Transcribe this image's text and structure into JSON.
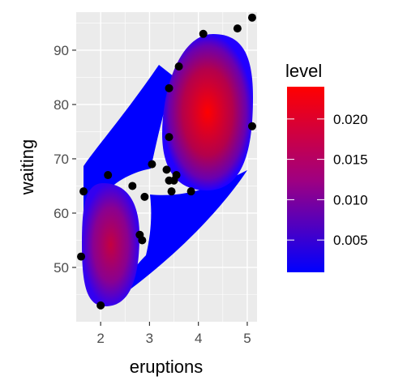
{
  "chart_data": {
    "type": "density2d_filled_scatter",
    "xlabel": "eruptions",
    "ylabel": "waiting",
    "xlim": [
      1.5,
      5.2
    ],
    "ylim": [
      40,
      97
    ],
    "xticks": [
      2,
      3,
      4,
      5
    ],
    "yticks": [
      50,
      60,
      70,
      80,
      90
    ],
    "tick_labels_x": [
      "2",
      "3",
      "4",
      "5"
    ],
    "tick_labels_y": [
      "50",
      "60",
      "70",
      "80",
      "90"
    ],
    "legend": {
      "title": "level",
      "placement": "right",
      "range": [
        0.001,
        0.024
      ],
      "ticks": [
        0.005,
        0.01,
        0.015,
        0.02
      ],
      "tick_labels": [
        "0.005",
        "0.010",
        "0.015",
        "0.020"
      ],
      "color_low": "#0000ff",
      "color_high": "#ff0000"
    },
    "density_regions": [
      {
        "center": [
          4.32,
          80.5
        ],
        "peak_level": 0.024
      },
      {
        "center": [
          2.05,
          54.0
        ],
        "peak_level": 0.016
      }
    ],
    "points": [
      [
        5.1,
        96
      ],
      [
        4.8,
        94
      ],
      [
        4.1,
        93
      ],
      [
        3.6,
        87
      ],
      [
        3.4,
        83
      ],
      [
        5.1,
        76
      ],
      [
        3.4,
        74
      ],
      [
        3.05,
        69
      ],
      [
        3.35,
        68
      ],
      [
        3.55,
        67
      ],
      [
        3.4,
        66
      ],
      [
        3.5,
        66
      ],
      [
        2.15,
        67
      ],
      [
        2.65,
        65
      ],
      [
        3.45,
        64
      ],
      [
        3.85,
        64
      ],
      [
        1.65,
        64
      ],
      [
        2.9,
        63
      ],
      [
        1.6,
        52
      ],
      [
        2.8,
        56
      ],
      [
        2.85,
        55
      ],
      [
        2.0,
        43
      ]
    ]
  },
  "colors": {
    "panel_background": "#ebebeb",
    "grid": "#ffffff",
    "point": "#000000"
  }
}
